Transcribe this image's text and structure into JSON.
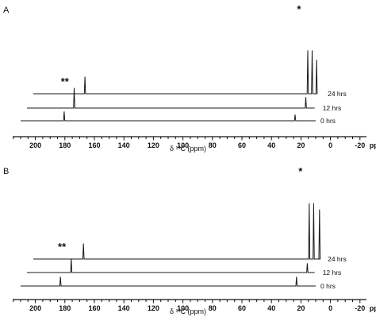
{
  "chart_data": [
    {
      "type": "line",
      "panel": "A",
      "xlabel": "δ ¹³C (ppm)",
      "xunit": "ppm",
      "xlim": [
        210,
        -20
      ],
      "reversed_x": true,
      "ticks": [
        200,
        180,
        160,
        140,
        120,
        100,
        80,
        60,
        40,
        20,
        0,
        -20
      ],
      "tick_labels": [
        "200",
        "180",
        "160",
        "140",
        "120",
        "100",
        "80",
        "60",
        "40",
        "20",
        "0",
        "-20"
      ],
      "tick_suffix_last": "ppm",
      "annotations": [
        {
          "text": "**",
          "x": 180
        },
        {
          "text": "*",
          "x": 24
        }
      ],
      "series": [
        {
          "name": "0 hrs",
          "start": 210,
          "end": 10,
          "peaks": [
            {
              "x": 180.5,
              "height": 0.3
            },
            {
              "x": 24.0,
              "height": 0.2
            }
          ]
        },
        {
          "name": "12 hrs",
          "start": 210,
          "end": 15,
          "peaks": [
            {
              "x": 178.0,
              "height": 0.65
            },
            {
              "x": 21.0,
              "height": 0.35
            }
          ]
        },
        {
          "name": "24 hrs",
          "start": 210,
          "end": 18,
          "peaks": [
            {
              "x": 175.0,
              "height": 0.55
            },
            {
              "x": 24.0,
              "height": 1.4
            },
            {
              "x": 21.0,
              "height": 1.4
            },
            {
              "x": 18.0,
              "height": 1.1
            }
          ]
        }
      ]
    },
    {
      "type": "line",
      "panel": "B",
      "xlabel": "δ ¹³C (ppm)",
      "xunit": "ppm",
      "xlim": [
        210,
        -20
      ],
      "reversed_x": true,
      "ticks": [
        200,
        180,
        160,
        140,
        120,
        100,
        80,
        60,
        40,
        20,
        0,
        -20
      ],
      "tick_labels": [
        "200",
        "180",
        "160",
        "140",
        "120",
        "100",
        "80",
        "60",
        "40",
        "20",
        "0",
        "-20"
      ],
      "tick_suffix_last": "ppm",
      "annotations": [
        {
          "text": "**",
          "x": 182
        },
        {
          "text": "*",
          "x": 23
        }
      ],
      "series": [
        {
          "name": "0 hrs",
          "start": 210,
          "end": 10,
          "peaks": [
            {
              "x": 183.0,
              "height": 0.3
            },
            {
              "x": 23.0,
              "height": 0.3
            }
          ]
        },
        {
          "name": "12 hrs",
          "start": 210,
          "end": 15,
          "peaks": [
            {
              "x": 180.0,
              "height": 0.45
            },
            {
              "x": 20.0,
              "height": 0.3
            }
          ]
        },
        {
          "name": "24 hrs",
          "start": 210,
          "end": 18,
          "peaks": [
            {
              "x": 176.0,
              "height": 0.5
            },
            {
              "x": 23.0,
              "height": 1.8
            },
            {
              "x": 20.0,
              "height": 1.8
            },
            {
              "x": 16.0,
              "height": 1.6
            }
          ]
        }
      ]
    }
  ]
}
